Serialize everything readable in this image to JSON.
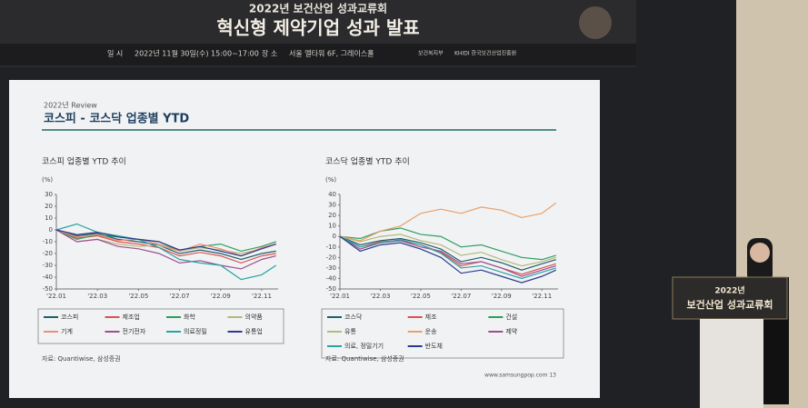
{
  "banner": {
    "event": "2022년 보건산업 성과교류회",
    "title": "혁신형 제약기업 성과 발표",
    "date_label": "일 시",
    "date": "2022년 11월 30일(수) 15:00~17:00",
    "place_label": "장 소",
    "place": "서울 엘타워 6F, 그레이스홀",
    "org1": "보건복지부",
    "org2": "KHIDI 한국보건산업진흥원"
  },
  "slide": {
    "kicker": "2022년 Review",
    "title": "코스피 - 코스닥 업종별 YTD",
    "footer": "www.samsungpop.com 13"
  },
  "podium": {
    "line1": "2022년",
    "line2": "보건산업 성과교류회"
  },
  "chart_data": [
    {
      "type": "line",
      "title": "코스피 업종별 YTD 추이",
      "y_unit": "(%)",
      "source": "자료: Quantiwise, 삼성증권",
      "grid": false,
      "x": [
        1,
        2,
        3,
        4,
        5,
        6,
        7,
        8,
        9,
        10,
        11,
        11.7
      ],
      "xlim": [
        1,
        11.8
      ],
      "xticks": [
        {
          "value": 1,
          "label": "'22.01"
        },
        {
          "value": 3,
          "label": "'22.03"
        },
        {
          "value": 5,
          "label": "'22.05"
        },
        {
          "value": 7,
          "label": "'22.07"
        },
        {
          "value": 9,
          "label": "'22.09"
        },
        {
          "value": 11,
          "label": "'22.11"
        }
      ],
      "ylim": [
        -50,
        30
      ],
      "yticks": [
        -50,
        -40,
        -30,
        -20,
        -10,
        0,
        10,
        20,
        30
      ],
      "series": [
        {
          "name": "코스피",
          "color": "#1f5f6b",
          "values": [
            0,
            -5,
            -3,
            -8,
            -10,
            -13,
            -20,
            -17,
            -20,
            -25,
            -20,
            -18
          ]
        },
        {
          "name": "제조업",
          "color": "#d9534f",
          "values": [
            0,
            -7,
            -5,
            -10,
            -12,
            -15,
            -22,
            -19,
            -22,
            -28,
            -22,
            -20
          ]
        },
        {
          "name": "화학",
          "color": "#2e9e5e",
          "values": [
            0,
            -8,
            -4,
            -6,
            -8,
            -10,
            -18,
            -14,
            -12,
            -18,
            -14,
            -10
          ]
        },
        {
          "name": "의약품",
          "color": "#b5b87a",
          "values": [
            0,
            -10,
            -8,
            -12,
            -14,
            -13,
            -18,
            -15,
            -17,
            -20,
            -16,
            -12
          ]
        },
        {
          "name": "기계",
          "color": "#f08c7a",
          "values": [
            0,
            -6,
            -4,
            -9,
            -8,
            -12,
            -18,
            -12,
            -16,
            -22,
            -15,
            -12
          ]
        },
        {
          "name": "전기전자",
          "color": "#9c4f8f",
          "values": [
            0,
            -10,
            -8,
            -14,
            -16,
            -20,
            -28,
            -26,
            -30,
            -33,
            -25,
            -22
          ]
        },
        {
          "name": "의료정밀",
          "color": "#2aa3a3",
          "values": [
            0,
            5,
            -2,
            -5,
            -8,
            -15,
            -25,
            -28,
            -30,
            -42,
            -38,
            -30
          ]
        },
        {
          "name": "유통업",
          "color": "#2b3a8c",
          "values": [
            0,
            -4,
            -2,
            -6,
            -8,
            -10,
            -17,
            -14,
            -18,
            -22,
            -16,
            -12
          ]
        }
      ]
    },
    {
      "type": "line",
      "title": "코스닥 업종별 YTD 추이",
      "y_unit": "(%)",
      "source": "자료: Quantiwise, 삼성증권",
      "grid": false,
      "x": [
        1,
        2,
        3,
        4,
        5,
        6,
        7,
        8,
        9,
        10,
        11,
        11.7
      ],
      "xlim": [
        1,
        11.8
      ],
      "xticks": [
        {
          "value": 1,
          "label": "'22.01"
        },
        {
          "value": 3,
          "label": "'22.03"
        },
        {
          "value": 5,
          "label": "'22.05"
        },
        {
          "value": 7,
          "label": "'22.07"
        },
        {
          "value": 9,
          "label": "'22.09"
        },
        {
          "value": 11,
          "label": "'22.11"
        }
      ],
      "ylim": [
        -50,
        40
      ],
      "yticks": [
        -50,
        -40,
        -30,
        -20,
        -10,
        0,
        10,
        20,
        30,
        40
      ],
      "series": [
        {
          "name": "코스닥",
          "color": "#1f5f6b",
          "values": [
            0,
            -8,
            -4,
            -2,
            -6,
            -12,
            -24,
            -20,
            -25,
            -32,
            -26,
            -22
          ]
        },
        {
          "name": "제조",
          "color": "#d9534f",
          "values": [
            0,
            -10,
            -5,
            -4,
            -8,
            -15,
            -28,
            -24,
            -30,
            -36,
            -30,
            -26
          ]
        },
        {
          "name": "건설",
          "color": "#2e9e5e",
          "values": [
            0,
            -2,
            5,
            8,
            2,
            0,
            -10,
            -8,
            -14,
            -20,
            -22,
            -18
          ]
        },
        {
          "name": "유통",
          "color": "#b5b87a",
          "values": [
            0,
            -5,
            0,
            2,
            -4,
            -8,
            -18,
            -15,
            -22,
            -28,
            -24,
            -20
          ]
        },
        {
          "name": "운송",
          "color": "#e8a06a",
          "values": [
            0,
            -4,
            5,
            10,
            22,
            26,
            22,
            28,
            25,
            18,
            22,
            32
          ]
        },
        {
          "name": "제약",
          "color": "#9c4f8f",
          "values": [
            0,
            -12,
            -6,
            -4,
            -10,
            -14,
            -26,
            -24,
            -30,
            -38,
            -32,
            -28
          ]
        },
        {
          "name": "의료, 정밀기기",
          "color": "#2aa3a3",
          "values": [
            0,
            -10,
            -6,
            -3,
            -8,
            -16,
            -30,
            -28,
            -34,
            -40,
            -34,
            -30
          ]
        },
        {
          "name": "반도체",
          "color": "#2b3a8c",
          "values": [
            0,
            -14,
            -8,
            -6,
            -12,
            -20,
            -35,
            -32,
            -38,
            -44,
            -38,
            -32
          ]
        }
      ]
    }
  ]
}
